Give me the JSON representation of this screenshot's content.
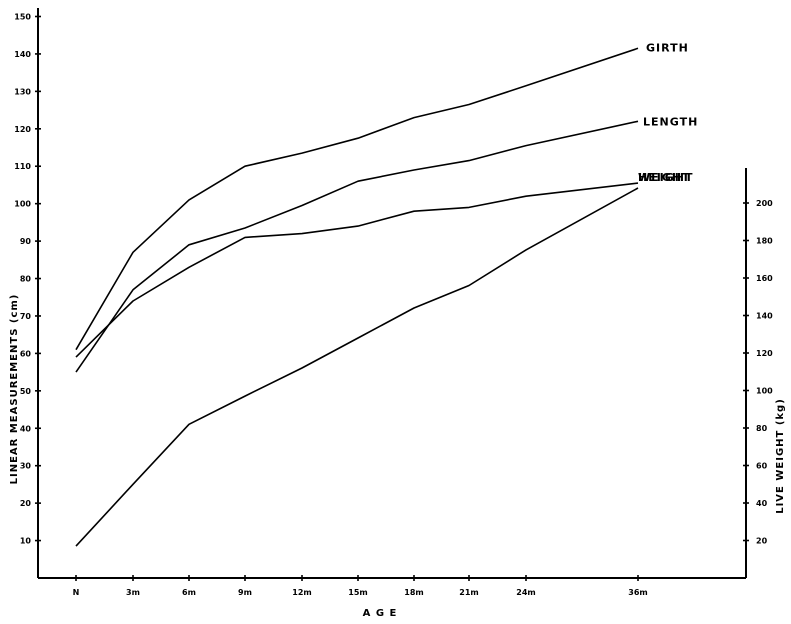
{
  "chart_data": {
    "type": "line",
    "xlabel": "A G E",
    "ylabel": "LINEAR  MEASUREMENTS   (cm)",
    "y2label": "LIVE  WEIGHT   (kg)",
    "x": [
      "N",
      "3m",
      "6m",
      "9m",
      "12m",
      "15m",
      "18m",
      "21m",
      "24m",
      "36m"
    ],
    "ylim": [
      0,
      150
    ],
    "y2lim": [
      0,
      220
    ],
    "yticks": [
      10,
      20,
      30,
      40,
      50,
      60,
      70,
      80,
      90,
      100,
      110,
      120,
      130,
      140,
      150
    ],
    "y2ticks": [
      20,
      40,
      60,
      80,
      100,
      120,
      140,
      160,
      180,
      200
    ],
    "grid": false,
    "series": [
      {
        "name": "GIRTH",
        "axis": "left",
        "values": [
          61,
          87,
          101,
          110,
          113.5,
          117.5,
          123,
          126.5,
          131.5,
          141.5
        ]
      },
      {
        "name": "LENGTH",
        "axis": "left",
        "values": [
          55,
          77,
          89,
          93.5,
          99.5,
          106,
          109,
          111.5,
          115.5,
          122
        ]
      },
      {
        "name": "HEIGHT",
        "axis": "left",
        "values": [
          59,
          74,
          83,
          91,
          92,
          94,
          98,
          99,
          102,
          105.5
        ]
      },
      {
        "name": "WEIGHT",
        "axis": "right",
        "values": [
          17,
          50,
          82,
          97,
          112,
          128,
          144,
          156,
          175,
          208
        ]
      }
    ]
  }
}
